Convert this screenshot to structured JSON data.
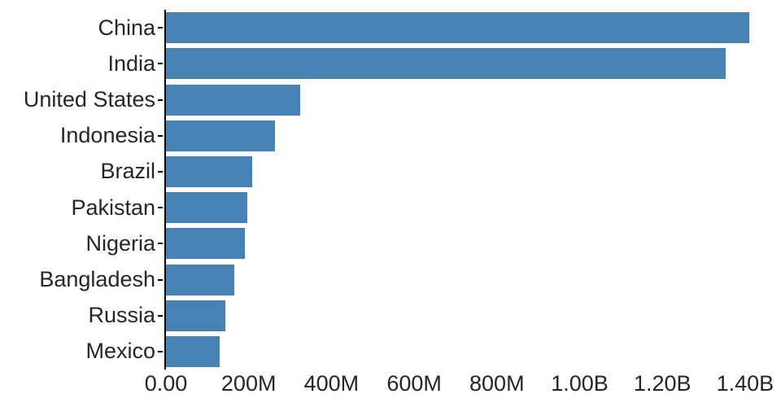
{
  "chart_data": {
    "type": "bar",
    "orientation": "horizontal",
    "title": "",
    "xlabel": "",
    "ylabel": "",
    "categories": [
      "China",
      "India",
      "United States",
      "Indonesia",
      "Brazil",
      "Pakistan",
      "Nigeria",
      "Bangladesh",
      "Russia",
      "Mexico"
    ],
    "values": [
      1410000000,
      1352000000,
      325000000,
      264000000,
      209000000,
      197000000,
      191000000,
      165000000,
      144000000,
      129000000
    ],
    "xlim": [
      0,
      1410000000
    ],
    "xticks": {
      "values": [
        0,
        200000000,
        400000000,
        600000000,
        800000000,
        1000000000,
        1200000000,
        1400000000
      ],
      "labels": [
        "0.00",
        "200M",
        "400M",
        "600M",
        "800M",
        "1.00B",
        "1.20B",
        "1.40B"
      ]
    },
    "grid": false,
    "legend": null,
    "colors": {
      "bar": "#4682b4",
      "axis": "#000000",
      "text": "#262626"
    }
  }
}
